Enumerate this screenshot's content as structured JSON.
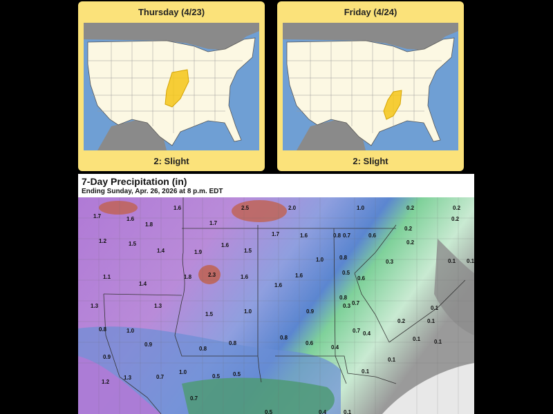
{
  "outlook": [
    {
      "day": "Thursday (4/23)",
      "risk_label": "2: Slight",
      "risk_color": "#f5c518"
    },
    {
      "day": "Friday (4/24)",
      "risk_label": "2: Slight",
      "risk_color": "#f5c518"
    }
  ],
  "precip": {
    "title": "7-Day Precipitation (in)",
    "subtitle": "Ending Sunday, Apr. 26, 2026 at 8 p.m. EDT",
    "labels": [
      "1.7",
      "1.6",
      "1.6",
      "1.8",
      "1.7",
      "2.5",
      "2.0",
      "1.0",
      "0.2",
      "0.2",
      "0.2",
      "1.2",
      "1.5",
      "1.4",
      "1.9",
      "1.6",
      "1.5",
      "1.7",
      "1.6",
      "0.8",
      "0.7",
      "0.6",
      "0.2",
      "0.2",
      "1.1",
      "1.4",
      "1.8",
      "2.3",
      "1.6",
      "1.6",
      "1.6",
      "1.0",
      "0.8",
      "0.5",
      "0.6",
      "0.3",
      "0.1",
      "0.1",
      "1.3",
      "1.3",
      "1.5",
      "1.0",
      "0.9",
      "0.8",
      "0.7",
      "0.7",
      "0.3",
      "0.1",
      "0.1",
      "0.2",
      "0.1",
      "0.8",
      "1.0",
      "0.9",
      "0.8",
      "0.8",
      "0.8",
      "0.6",
      "0.4",
      "0.4",
      "0.1",
      "0.9",
      "1.0",
      "0.5",
      "0.5",
      "0.7",
      "0.1",
      "0.1",
      "1.2",
      "1.3",
      "0.7",
      "0.5",
      "0.4",
      "0.1",
      "0.1"
    ]
  },
  "colors": {
    "ocean": "#6f9fd4",
    "land": "#fcf8e3",
    "foreign": "#8a8a8a",
    "panel": "#fbe27a"
  }
}
